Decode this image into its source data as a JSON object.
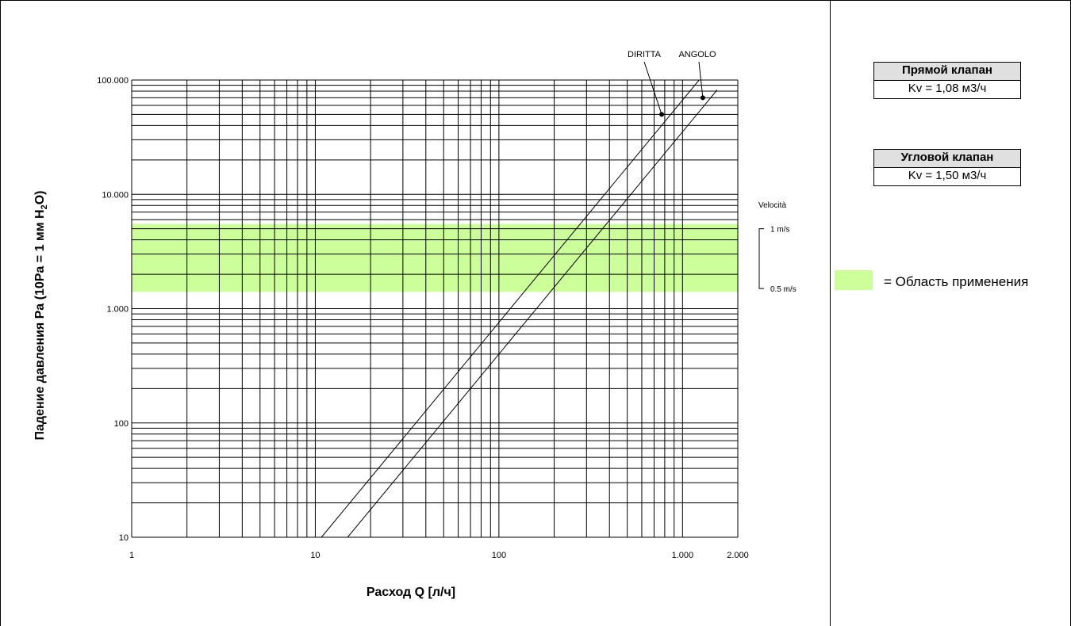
{
  "chart_data": {
    "type": "line",
    "x_scale": "log",
    "y_scale": "log",
    "xlabel": "Расход Q [л/ч]",
    "ylabel": "Падение давления  Pa (10Pa = 1 мм H2O)",
    "ylabel_parts": {
      "main": "Падение давления  Pa (10Pa = 1 мм H",
      "sub": "2",
      "tail": "O)"
    },
    "xlim": [
      1,
      2000
    ],
    "ylim": [
      10,
      100000
    ],
    "x_ticks": [
      {
        "value": 1,
        "label": "1"
      },
      {
        "value": 10,
        "label": "10"
      },
      {
        "value": 100,
        "label": "100"
      },
      {
        "value": 1000,
        "label": "1.000"
      },
      {
        "value": 2000,
        "label": "2.000"
      }
    ],
    "y_ticks": [
      {
        "value": 10,
        "label": "10"
      },
      {
        "value": 100,
        "label": "100"
      },
      {
        "value": 1000,
        "label": "1.000"
      },
      {
        "value": 10000,
        "label": "10.000"
      },
      {
        "value": 100000,
        "label": "100.000"
      }
    ],
    "grid": true,
    "series": [
      {
        "name": "DIRITTA",
        "kv": 1.08,
        "points": [
          [
            10.8,
            10
          ],
          [
            1080,
            100000
          ]
        ],
        "marker": [
          770,
          50000
        ]
      },
      {
        "name": "ANGOLO",
        "kv": 1.5,
        "points": [
          [
            15,
            10
          ],
          [
            1500,
            100000
          ]
        ],
        "marker": [
          1290,
          70000
        ]
      }
    ],
    "application_zone": {
      "y_range": [
        1400,
        5500
      ],
      "color": "#ccff99"
    },
    "velocity_scale": {
      "title": "Velocità",
      "top_label": "1 m/s",
      "bottom_label": "0.5 m/s",
      "y_top": 5000,
      "y_bottom": 1500
    }
  },
  "legend": {
    "straight_valve": {
      "title": "Прямой клапан",
      "kv": "Kv = 1,08 м3/ч"
    },
    "angle_valve": {
      "title": "Угловой клапан",
      "kv": "Kv = 1,50 м3/ч"
    },
    "zone_label": "= Область применения"
  }
}
